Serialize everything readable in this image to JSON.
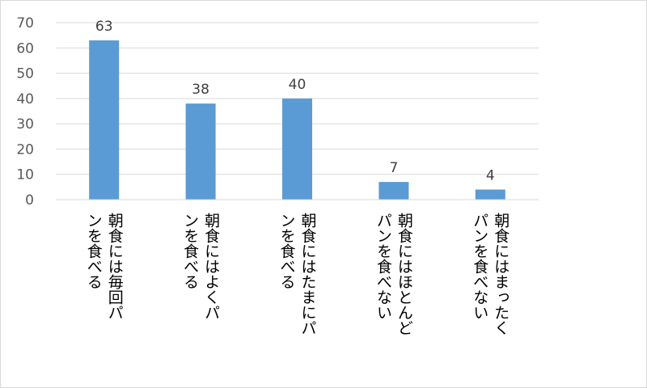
{
  "chart_data": {
    "type": "bar",
    "orientation": "vertical",
    "title": "",
    "xlabel": "",
    "ylabel": "",
    "categories": [
      "朝食には毎回パンを食べる",
      "朝食にはよくパンを食べる",
      "朝食にはたまにパンを食べる",
      "朝食にはほとんどパンを食べない",
      "朝食にはまったくパンを食べない"
    ],
    "category_lines": [
      [
        "朝食には毎回パ",
        "ンを食べる"
      ],
      [
        "朝食にはよくパ",
        "ンを食べる"
      ],
      [
        "朝食にはたまにパ",
        "ンを食べる"
      ],
      [
        "朝食にはほとんど",
        "パンを食べない"
      ],
      [
        "朝食にはまったく",
        "パンを食べない"
      ]
    ],
    "values": [
      63,
      38,
      40,
      7,
      4
    ],
    "data_labels": [
      "63",
      "38",
      "40",
      "7",
      "4"
    ],
    "ylim": [
      0,
      70
    ],
    "yticks": [
      0,
      10,
      20,
      30,
      40,
      50,
      60,
      70
    ],
    "grid": true,
    "legend": "none",
    "colors": {
      "bar": "#5b9bd5",
      "grid": "#d9d9d9",
      "axis": "#d9d9d9",
      "tick_text": "#595959",
      "label_text": "#404040"
    }
  }
}
